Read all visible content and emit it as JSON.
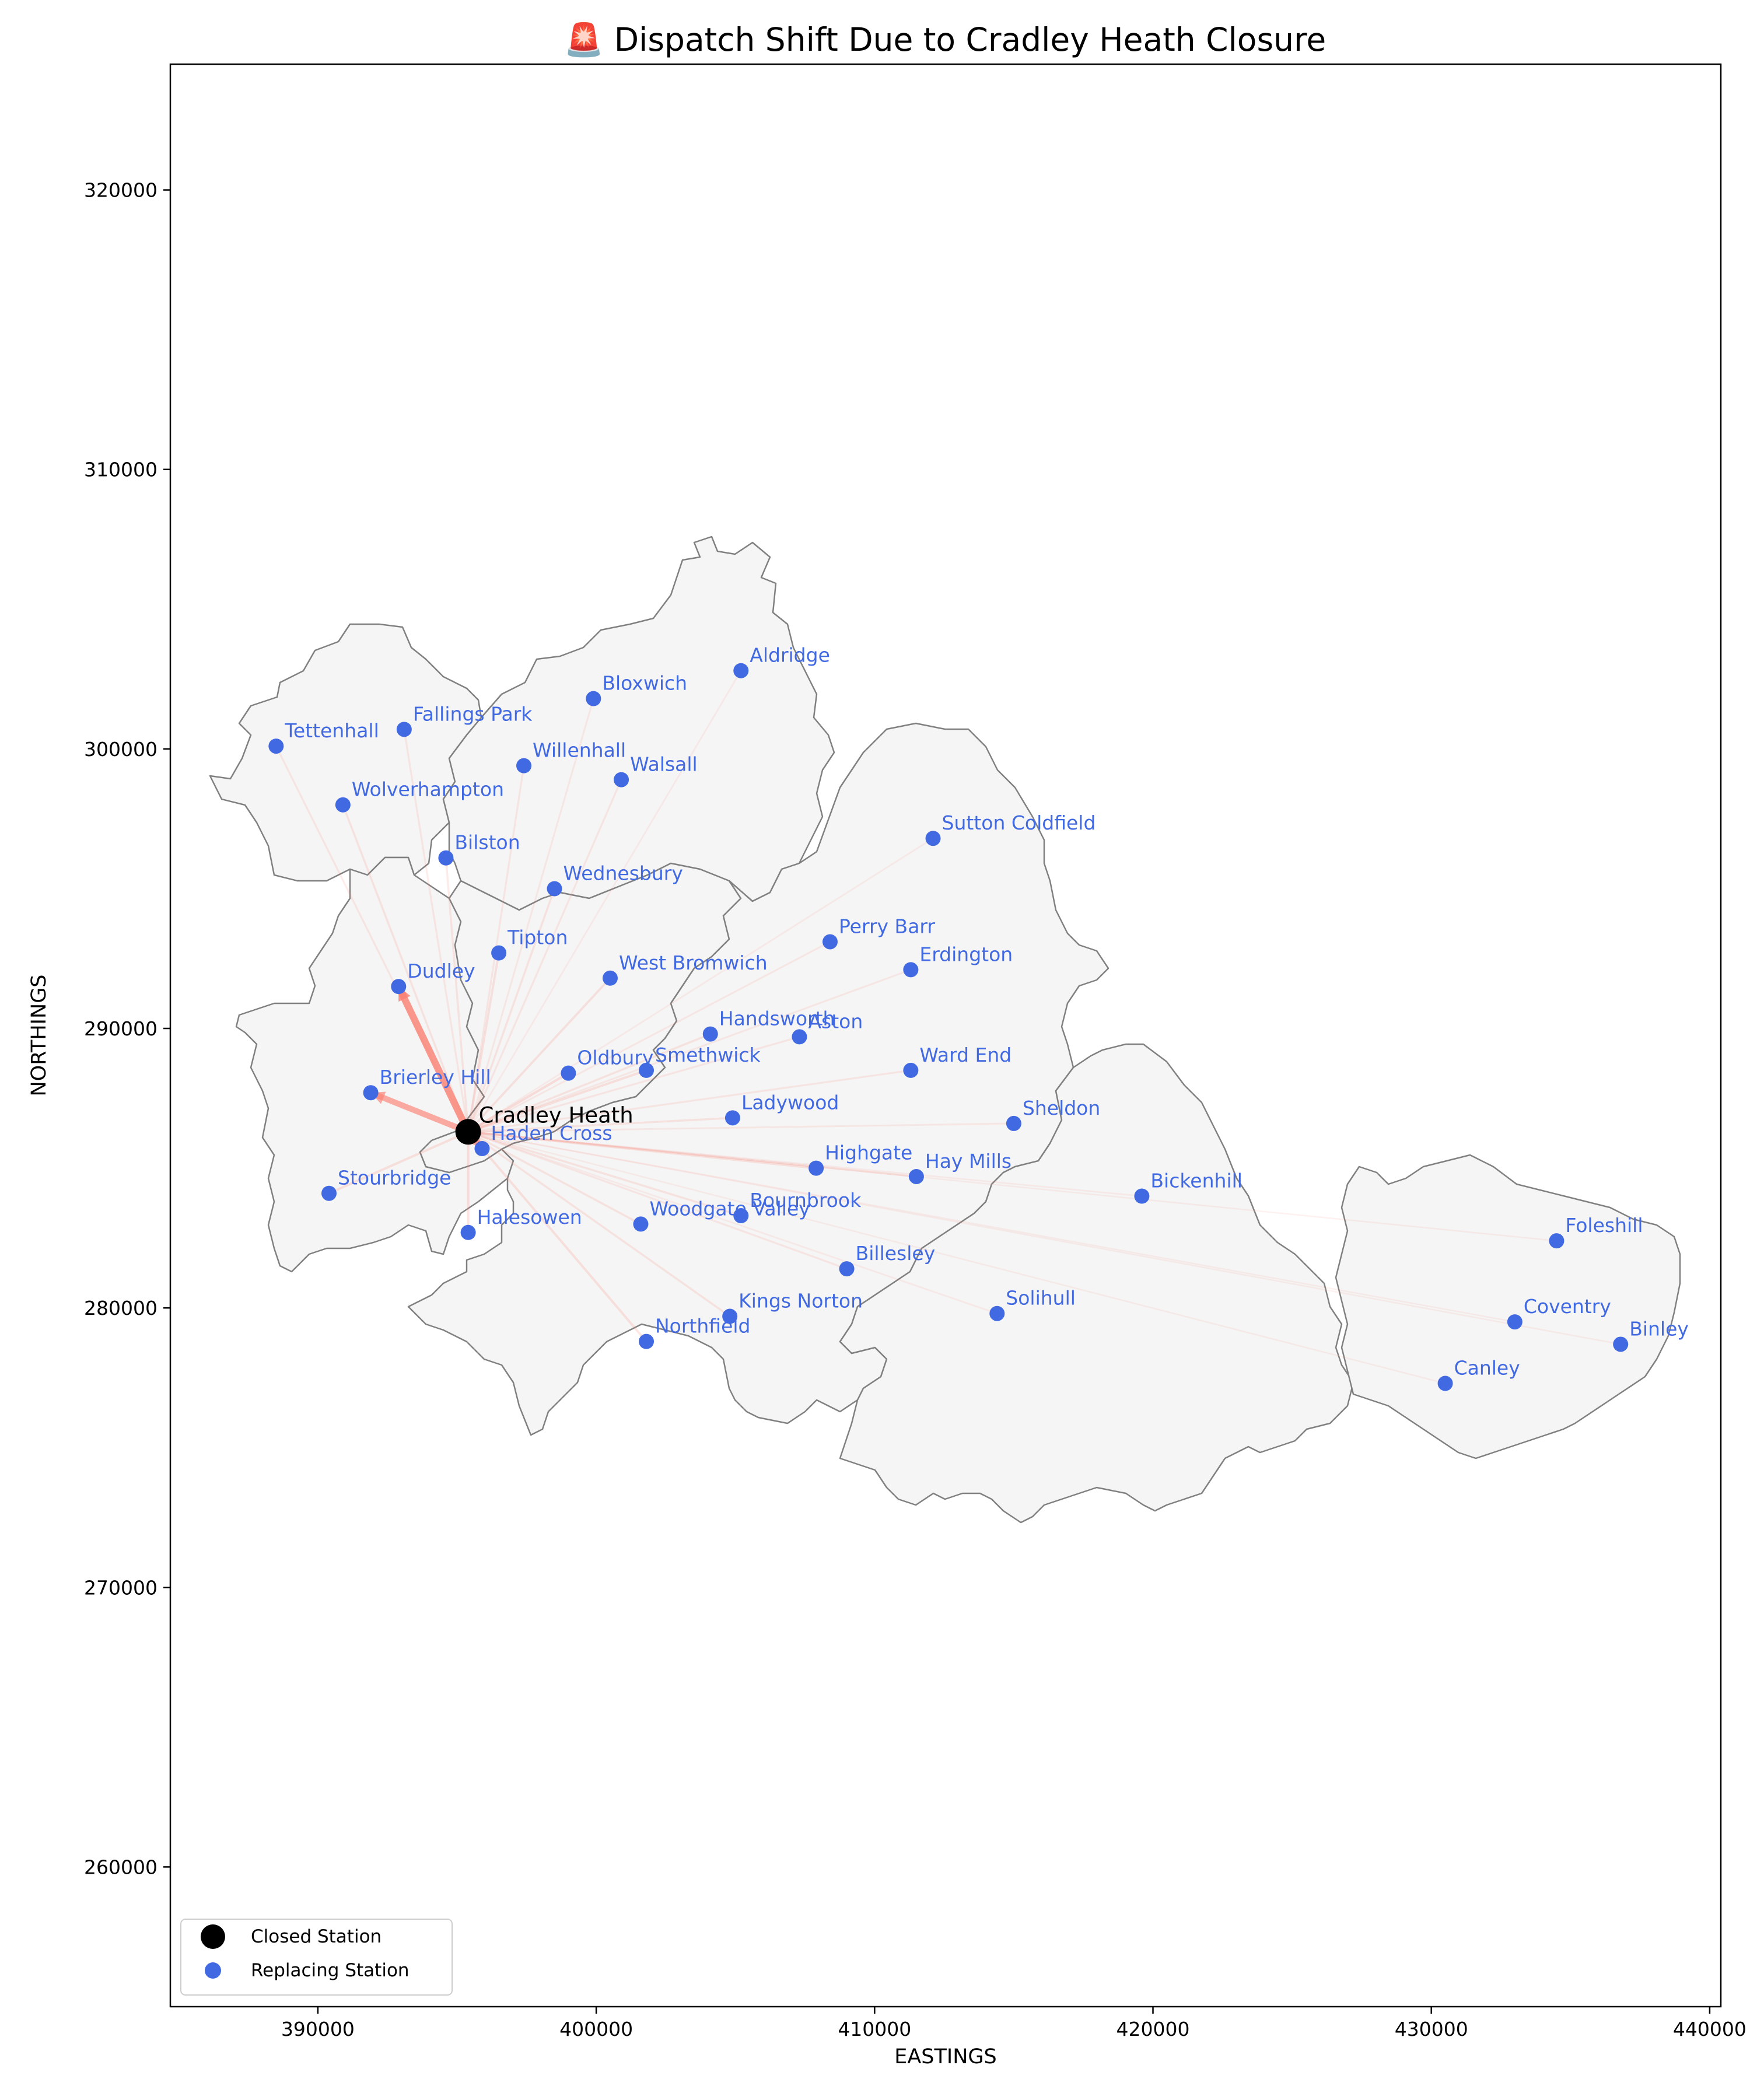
{
  "chart_data": {
    "type": "scatter",
    "title": "🚨 Dispatch Shift Due to Cradley Heath Closure",
    "xlabel": "EASTINGS",
    "ylabel": "NORTHINGS",
    "xlim": [
      384700,
      440400
    ],
    "ylim": [
      255000,
      324500
    ],
    "xticks": [
      390000,
      400000,
      410000,
      420000,
      430000,
      440000
    ],
    "yticks": [
      260000,
      270000,
      280000,
      290000,
      300000,
      310000,
      320000
    ],
    "grid": false,
    "legend_position": "bottom-left",
    "legend": [
      {
        "label": "Closed Station",
        "color": "#000000"
      },
      {
        "label": "Replacing Station",
        "color": "#4169e1"
      }
    ],
    "closed_station": {
      "name": "Cradley Heath",
      "x": 395400,
      "y": 286300
    },
    "stations": [
      {
        "name": "Tettenhall",
        "x": 388500,
        "y": 300100,
        "weight": 0.12
      },
      {
        "name": "Fallings Park",
        "x": 393100,
        "y": 300700,
        "weight": 0.12
      },
      {
        "name": "Wolverhampton",
        "x": 390900,
        "y": 298000,
        "weight": 0.15
      },
      {
        "name": "Bilston",
        "x": 394600,
        "y": 296100,
        "weight": 0.15
      },
      {
        "name": "Willenhall",
        "x": 397400,
        "y": 299400,
        "weight": 0.12
      },
      {
        "name": "Bloxwich",
        "x": 399900,
        "y": 301800,
        "weight": 0.1
      },
      {
        "name": "Aldridge",
        "x": 405200,
        "y": 302800,
        "weight": 0.08
      },
      {
        "name": "Walsall",
        "x": 400900,
        "y": 298900,
        "weight": 0.12
      },
      {
        "name": "Wednesbury",
        "x": 398500,
        "y": 295000,
        "weight": 0.15
      },
      {
        "name": "Tipton",
        "x": 396500,
        "y": 292700,
        "weight": 0.18
      },
      {
        "name": "Dudley",
        "x": 392900,
        "y": 291500,
        "weight": 1.0
      },
      {
        "name": "West Bromwich",
        "x": 400500,
        "y": 291800,
        "weight": 0.18
      },
      {
        "name": "Brierley Hill",
        "x": 391900,
        "y": 287700,
        "weight": 0.8
      },
      {
        "name": "Oldbury",
        "x": 399000,
        "y": 288400,
        "weight": 0.22
      },
      {
        "name": "Smethwick",
        "x": 401800,
        "y": 288500,
        "weight": 0.2
      },
      {
        "name": "Handsworth",
        "x": 404100,
        "y": 289800,
        "weight": 0.15
      },
      {
        "name": "Aston",
        "x": 407300,
        "y": 289700,
        "weight": 0.12
      },
      {
        "name": "Ladywood",
        "x": 404900,
        "y": 286800,
        "weight": 0.15
      },
      {
        "name": "Perry Barr",
        "x": 408400,
        "y": 293100,
        "weight": 0.1
      },
      {
        "name": "Erdington",
        "x": 411300,
        "y": 292100,
        "weight": 0.1
      },
      {
        "name": "Sutton Coldfield",
        "x": 412100,
        "y": 296800,
        "weight": 0.08
      },
      {
        "name": "Ward End",
        "x": 411300,
        "y": 288500,
        "weight": 0.12
      },
      {
        "name": "Sheldon",
        "x": 415000,
        "y": 286600,
        "weight": 0.1
      },
      {
        "name": "Haden Cross",
        "x": 395900,
        "y": 285700,
        "weight": 0.7
      },
      {
        "name": "Highgate",
        "x": 407900,
        "y": 285000,
        "weight": 0.2
      },
      {
        "name": "Hay Mills",
        "x": 411500,
        "y": 284700,
        "weight": 0.15
      },
      {
        "name": "Stourbridge",
        "x": 390400,
        "y": 284100,
        "weight": 0.2
      },
      {
        "name": "Halesowen",
        "x": 395400,
        "y": 282700,
        "weight": 0.22
      },
      {
        "name": "Woodgate Valley",
        "x": 401600,
        "y": 283000,
        "weight": 0.15
      },
      {
        "name": "Bournbrook",
        "x": 405200,
        "y": 283300,
        "weight": 0.15
      },
      {
        "name": "Bickenhill",
        "x": 419600,
        "y": 284000,
        "weight": 0.08
      },
      {
        "name": "Billesley",
        "x": 409000,
        "y": 281400,
        "weight": 0.12
      },
      {
        "name": "Solihull",
        "x": 414400,
        "y": 279800,
        "weight": 0.08
      },
      {
        "name": "Kings Norton",
        "x": 404800,
        "y": 279700,
        "weight": 0.15
      },
      {
        "name": "Northfield",
        "x": 401800,
        "y": 278800,
        "weight": 0.2
      },
      {
        "name": "Foleshill",
        "x": 434500,
        "y": 282400,
        "weight": 0.06
      },
      {
        "name": "Coventry",
        "x": 433000,
        "y": 279500,
        "weight": 0.06
      },
      {
        "name": "Binley",
        "x": 436800,
        "y": 278700,
        "weight": 0.06
      },
      {
        "name": "Canley",
        "x": 430500,
        "y": 277300,
        "weight": 0.06
      }
    ],
    "colors": {
      "closed": "#000000",
      "replacing": "#4169e1",
      "arrow": "#fa8072",
      "map_fill": "#f5f5f5",
      "map_edge": "#808080"
    }
  }
}
